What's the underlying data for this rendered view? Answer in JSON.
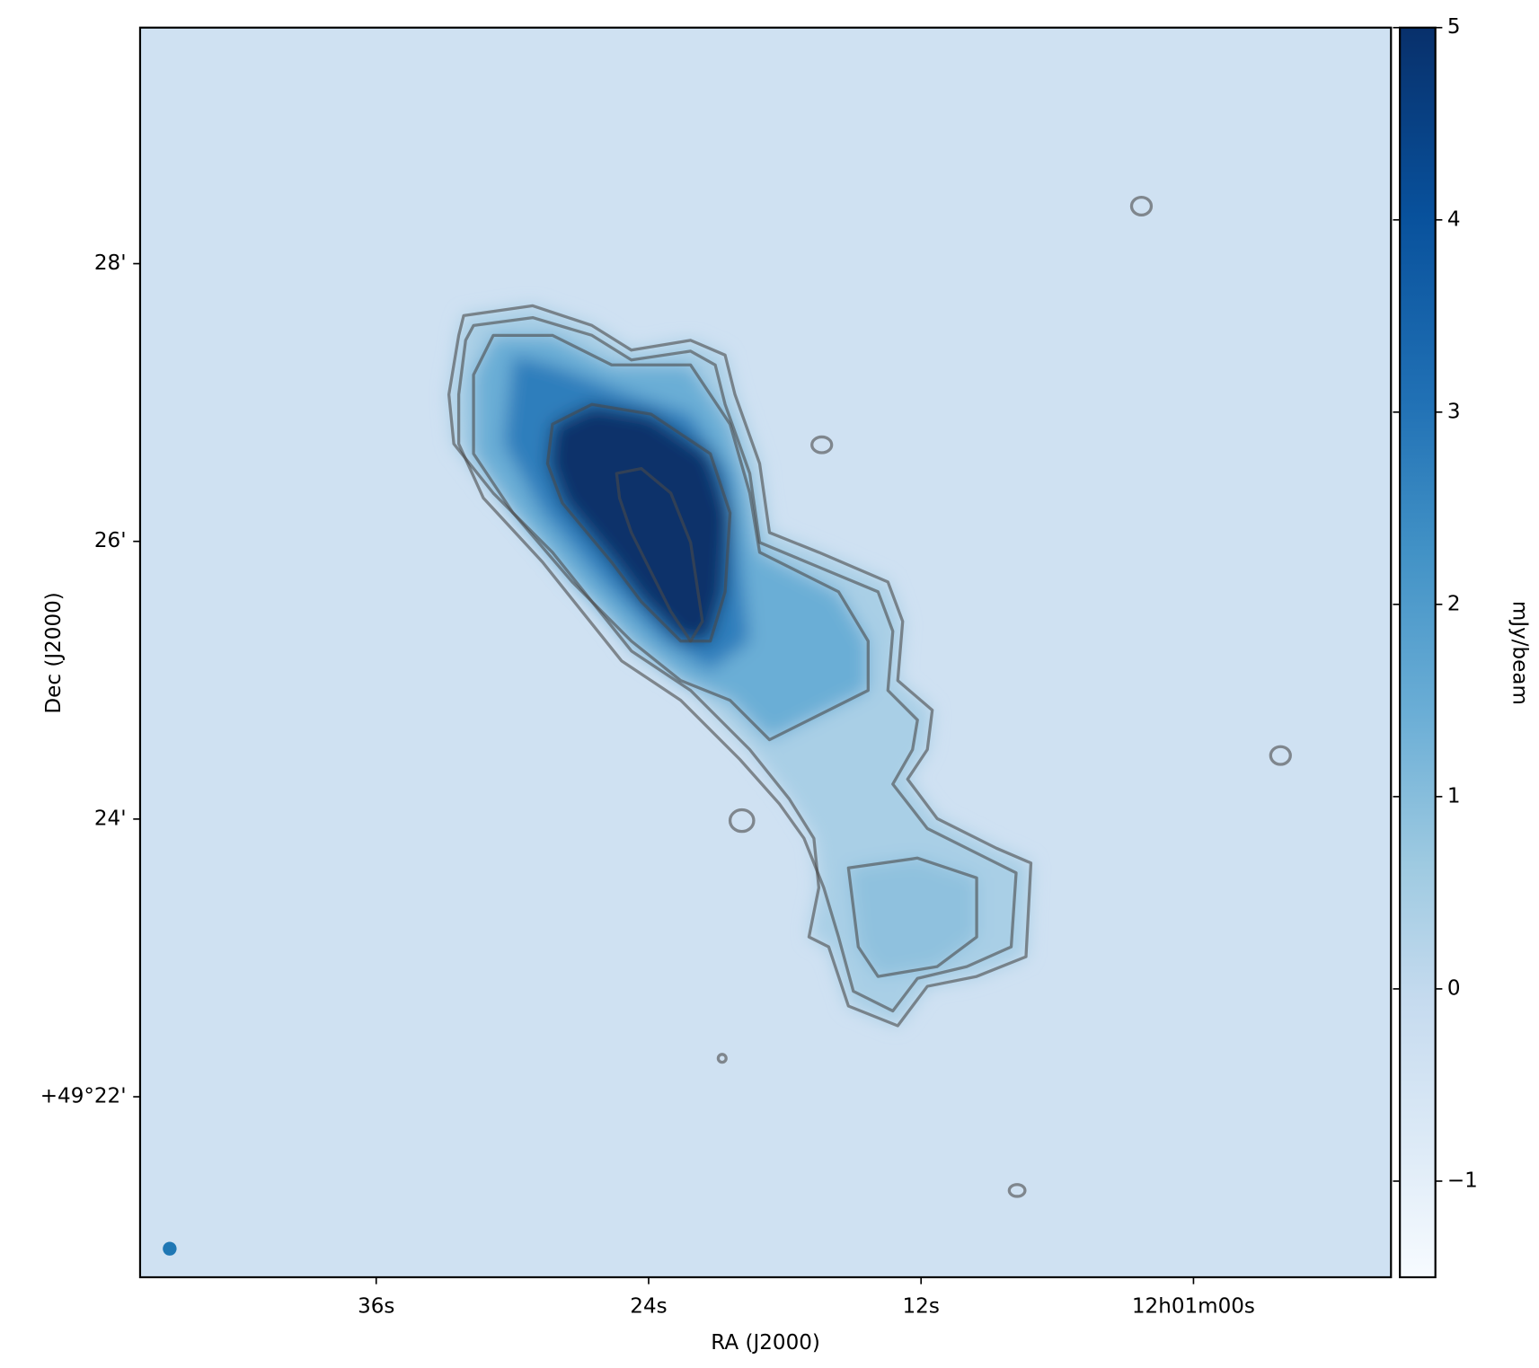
{
  "chart_data": {
    "type": "image",
    "xlabel": "RA (J2000)",
    "ylabel": "Dec (J2000)",
    "xlim": [
      46.4,
      -8.7
    ],
    "xticks": [
      {
        "value": 36,
        "label": "36s"
      },
      {
        "value": 24,
        "label": "24s"
      },
      {
        "value": 12,
        "label": "12s"
      },
      {
        "value": 0,
        "label": "12h01m00s"
      }
    ],
    "ylim": [
      20.7,
      29.7
    ],
    "yticks": [
      {
        "value": 28,
        "label": "28'"
      },
      {
        "value": 26,
        "label": "26'"
      },
      {
        "value": 24,
        "label": "24'"
      },
      {
        "value": 22,
        "label": "+49°22'"
      }
    ],
    "colormap": "Blues",
    "colorbar": {
      "label": "mJy/beam",
      "clim": [
        -1.5,
        5
      ],
      "ticks": [
        {
          "value": -1,
          "label": "−1"
        },
        0,
        1,
        2,
        3,
        4,
        5
      ]
    }
  }
}
